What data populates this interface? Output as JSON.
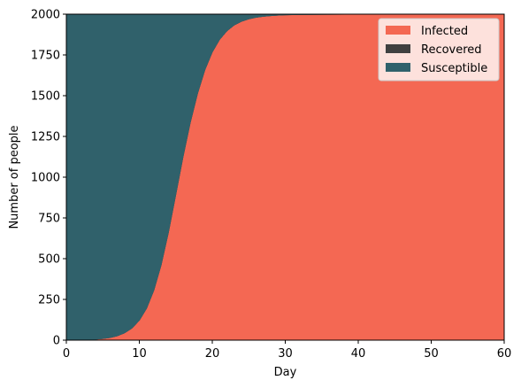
{
  "chart_data": {
    "type": "area",
    "stacked": true,
    "xlabel": "Day",
    "ylabel": "Number of people",
    "xlim": [
      0,
      60
    ],
    "ylim": [
      0,
      2000
    ],
    "xticks": [
      0,
      10,
      20,
      30,
      40,
      50,
      60
    ],
    "yticks": [
      0,
      250,
      500,
      750,
      1000,
      1250,
      1500,
      1750,
      2000
    ],
    "grid": false,
    "legend_position": "top-right",
    "x": [
      0,
      1,
      2,
      3,
      4,
      5,
      6,
      7,
      8,
      9,
      10,
      11,
      12,
      13,
      14,
      15,
      16,
      17,
      18,
      19,
      20,
      21,
      22,
      23,
      24,
      25,
      26,
      27,
      28,
      29,
      30,
      32,
      35,
      40,
      45,
      50,
      55,
      60
    ],
    "series": [
      {
        "name": "Infected",
        "color": "#f46853",
        "values": [
          1,
          1,
          2,
          3,
          5,
          9,
          15,
          26,
          44,
          73,
          120,
          194,
          305,
          460,
          660,
          890,
          1123,
          1335,
          1514,
          1658,
          1766,
          1843,
          1896,
          1932,
          1955,
          1970,
          1980,
          1986,
          1990,
          1993,
          1995,
          1997,
          1998,
          1999,
          1999,
          2000,
          2000,
          2000
        ]
      },
      {
        "name": "Recovered",
        "color": "#404040",
        "values": [
          0,
          0,
          0,
          0,
          0,
          0,
          0,
          0,
          0,
          0,
          0,
          0,
          0,
          0,
          0,
          0,
          0,
          0,
          0,
          0,
          0,
          0,
          0,
          0,
          0,
          0,
          0,
          0,
          0,
          0,
          0,
          0,
          0,
          0,
          0,
          0,
          0,
          0
        ]
      },
      {
        "name": "Susceptible",
        "color": "#30616b",
        "values": [
          1999,
          1999,
          1998,
          1997,
          1995,
          1991,
          1985,
          1974,
          1956,
          1927,
          1880,
          1806,
          1695,
          1540,
          1340,
          1110,
          877,
          665,
          486,
          342,
          234,
          157,
          104,
          68,
          45,
          30,
          20,
          14,
          10,
          7,
          5,
          3,
          2,
          1,
          1,
          0,
          0,
          0
        ]
      }
    ]
  }
}
